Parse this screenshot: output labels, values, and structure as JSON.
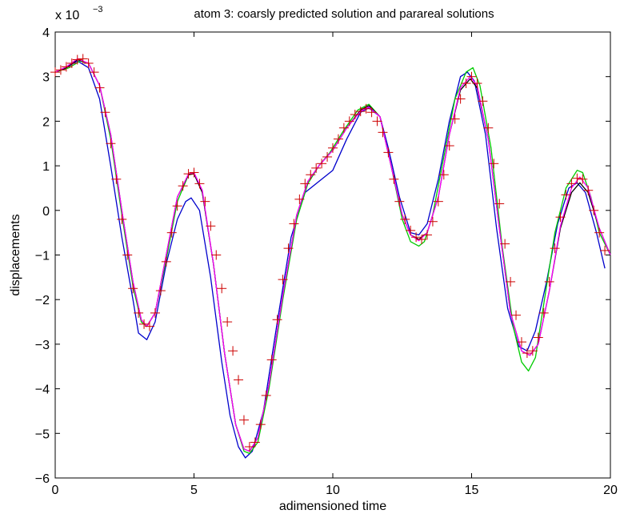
{
  "chart_data": {
    "type": "line",
    "title": "atom 3: coarsly predicted solution and parareal solutions",
    "xlabel": "adimensioned time",
    "ylabel": "displacements",
    "y_scale_label": "x 10",
    "y_scale_exponent": "−3",
    "xlim": [
      0,
      20
    ],
    "ylim": [
      -6,
      4
    ],
    "xticks": [
      0,
      5,
      10,
      15,
      20
    ],
    "xtick_labels": [
      "0",
      "5",
      "10",
      "15",
      "20"
    ],
    "yticks": [
      -6,
      -5,
      -4,
      -3,
      -2,
      -1,
      0,
      1,
      2,
      3,
      4
    ],
    "ytick_labels": [
      "−6",
      "−5",
      "−4",
      "−3",
      "−2",
      "−1",
      "0",
      "1",
      "2",
      "3",
      "4"
    ],
    "grid": false,
    "legend": "none",
    "series": [
      {
        "color": "#0000cc",
        "style": "solid",
        "x": [
          0,
          0.4,
          0.8,
          1.2,
          1.6,
          2.0,
          2.4,
          2.8,
          3.0,
          3.3,
          3.6,
          4.0,
          4.4,
          4.7,
          4.9,
          5.2,
          5.6,
          6.0,
          6.3,
          6.6,
          6.85,
          7.1,
          7.5,
          8.0,
          8.5,
          9.0,
          9.5,
          10.0,
          10.5,
          11.0,
          11.3,
          11.7,
          12.0,
          12.4,
          12.8,
          13.1,
          13.4,
          13.8,
          14.2,
          14.6,
          14.85,
          15.1,
          15.5,
          15.9,
          16.3,
          16.7,
          17.0,
          17.3,
          17.7,
          18.1,
          18.5,
          18.8,
          19.1,
          19.5,
          19.8
        ],
        "y": [
          3.1,
          3.2,
          3.35,
          3.2,
          2.5,
          1.0,
          -0.6,
          -2.0,
          -2.75,
          -2.9,
          -2.5,
          -1.2,
          -0.2,
          0.2,
          0.28,
          0.0,
          -1.5,
          -3.4,
          -4.6,
          -5.3,
          -5.55,
          -5.4,
          -4.5,
          -2.5,
          -0.6,
          0.4,
          0.65,
          0.9,
          1.6,
          2.2,
          2.3,
          2.1,
          1.4,
          0.3,
          -0.5,
          -0.55,
          -0.3,
          0.7,
          2.0,
          3.0,
          3.1,
          2.9,
          1.7,
          -0.4,
          -2.2,
          -3.05,
          -3.15,
          -2.7,
          -1.6,
          -0.3,
          0.5,
          0.62,
          0.4,
          -0.5,
          -1.3
        ]
      },
      {
        "color": "#00cc00",
        "style": "solid",
        "x": [
          0,
          0.5,
          0.9,
          1.2,
          1.6,
          2.0,
          2.4,
          2.8,
          3.1,
          3.3,
          3.6,
          4.0,
          4.4,
          4.8,
          5.0,
          5.3,
          5.7,
          6.1,
          6.5,
          6.8,
          7.0,
          7.3,
          7.7,
          8.2,
          8.7,
          9.1,
          9.5,
          9.9,
          10.4,
          10.9,
          11.3,
          11.7,
          12.1,
          12.5,
          12.8,
          13.1,
          13.3,
          13.6,
          14.0,
          14.4,
          14.8,
          15.05,
          15.3,
          15.7,
          16.1,
          16.5,
          16.8,
          17.05,
          17.3,
          17.6,
          18.0,
          18.4,
          18.8,
          19.0,
          19.3,
          19.6,
          20.0
        ],
        "y": [
          3.1,
          3.2,
          3.35,
          3.3,
          2.8,
          1.6,
          -0.1,
          -1.7,
          -2.5,
          -2.6,
          -2.3,
          -1.1,
          0.2,
          0.8,
          0.85,
          0.4,
          -1.2,
          -3.2,
          -4.8,
          -5.4,
          -5.45,
          -5.2,
          -4.0,
          -2.0,
          -0.2,
          0.6,
          1.0,
          1.3,
          1.8,
          2.25,
          2.38,
          2.1,
          1.0,
          -0.2,
          -0.7,
          -0.8,
          -0.7,
          -0.1,
          1.2,
          2.5,
          3.1,
          3.2,
          2.8,
          1.4,
          -0.8,
          -2.6,
          -3.4,
          -3.6,
          -3.3,
          -2.1,
          -0.5,
          0.5,
          0.9,
          0.85,
          0.3,
          -0.5,
          -1.0
        ]
      },
      {
        "color": "#000000",
        "style": "solid",
        "x": [
          0,
          0.4,
          0.8,
          1.2,
          1.6,
          2.0,
          2.4,
          2.8,
          3.1,
          3.3,
          3.6,
          4.0,
          4.4,
          4.8,
          5.0,
          5.3,
          5.7,
          6.1,
          6.5,
          6.8,
          7.0,
          7.3,
          7.7,
          8.2,
          8.7,
          9.1,
          9.5,
          10.0,
          10.5,
          11.0,
          11.3,
          11.7,
          12.1,
          12.5,
          12.8,
          13.1,
          13.4,
          13.8,
          14.2,
          14.6,
          14.95,
          15.2,
          15.6,
          16.0,
          16.4,
          16.8,
          17.1,
          17.4,
          17.8,
          18.2,
          18.6,
          18.9,
          19.2,
          19.6,
          20.0
        ],
        "y": [
          3.1,
          3.2,
          3.38,
          3.3,
          2.8,
          1.7,
          0.0,
          -1.6,
          -2.45,
          -2.6,
          -2.3,
          -1.0,
          0.3,
          0.8,
          0.82,
          0.4,
          -1.2,
          -3.2,
          -4.8,
          -5.35,
          -5.4,
          -5.1,
          -3.9,
          -1.9,
          -0.1,
          0.65,
          1.0,
          1.35,
          1.85,
          2.25,
          2.35,
          2.1,
          1.0,
          -0.1,
          -0.55,
          -0.65,
          -0.5,
          0.3,
          1.7,
          2.7,
          2.95,
          2.75,
          1.6,
          -0.4,
          -2.3,
          -3.15,
          -3.25,
          -3.0,
          -1.8,
          -0.4,
          0.4,
          0.62,
          0.4,
          -0.4,
          -1.0
        ]
      },
      {
        "color": "#ff00ff",
        "style": "solid",
        "x": [
          0,
          0.4,
          0.8,
          1.2,
          1.6,
          2.0,
          2.4,
          2.8,
          3.1,
          3.3,
          3.6,
          4.0,
          4.4,
          4.8,
          5.0,
          5.3,
          5.7,
          6.1,
          6.5,
          6.8,
          7.0,
          7.3,
          7.7,
          8.2,
          8.7,
          9.1,
          9.5,
          10.0,
          10.5,
          11.0,
          11.3,
          11.7,
          12.1,
          12.5,
          12.8,
          13.1,
          13.4,
          13.8,
          14.2,
          14.6,
          14.95,
          15.2,
          15.6,
          16.0,
          16.4,
          16.8,
          17.1,
          17.4,
          17.8,
          18.2,
          18.6,
          18.9,
          19.2,
          19.6,
          20.0
        ],
        "y": [
          3.1,
          3.22,
          3.4,
          3.3,
          2.8,
          1.7,
          0.0,
          -1.6,
          -2.45,
          -2.6,
          -2.3,
          -1.0,
          0.3,
          0.82,
          0.85,
          0.45,
          -1.2,
          -3.2,
          -4.8,
          -5.35,
          -5.4,
          -5.1,
          -3.9,
          -1.9,
          -0.1,
          0.65,
          1.0,
          1.35,
          1.85,
          2.22,
          2.32,
          2.1,
          1.0,
          -0.1,
          -0.55,
          -0.68,
          -0.5,
          0.3,
          1.7,
          2.75,
          3.0,
          2.8,
          1.6,
          -0.4,
          -2.3,
          -3.15,
          -3.25,
          -3.0,
          -1.8,
          -0.35,
          0.5,
          0.75,
          0.5,
          -0.4,
          -1.0
        ]
      },
      {
        "color": "#cc0000",
        "style": "markers",
        "marker": "+",
        "x": [
          0,
          0.2,
          0.4,
          0.6,
          0.8,
          1.0,
          1.2,
          1.4,
          1.6,
          1.8,
          2.0,
          2.2,
          2.4,
          2.6,
          2.8,
          3.0,
          3.2,
          3.4,
          3.6,
          3.8,
          4.0,
          4.2,
          4.4,
          4.6,
          4.8,
          5.0,
          5.2,
          5.4,
          5.6,
          5.8,
          6.0,
          6.2,
          6.4,
          6.6,
          6.8,
          7.0,
          7.2,
          7.4,
          7.6,
          7.8,
          8.0,
          8.2,
          8.4,
          8.6,
          8.8,
          9.0,
          9.2,
          9.4,
          9.6,
          9.8,
          10.0,
          10.2,
          10.4,
          10.6,
          10.8,
          11.0,
          11.2,
          11.4,
          11.6,
          11.8,
          12.0,
          12.2,
          12.4,
          12.6,
          12.8,
          13.0,
          13.2,
          13.4,
          13.6,
          13.8,
          14.0,
          14.2,
          14.4,
          14.6,
          14.8,
          15.0,
          15.2,
          15.4,
          15.6,
          15.8,
          16.0,
          16.2,
          16.4,
          16.6,
          16.8,
          17.0,
          17.2,
          17.4,
          17.6,
          17.8,
          18.0,
          18.2,
          18.4,
          18.6,
          18.8,
          19.0,
          19.2,
          19.4,
          19.6,
          19.8
        ],
        "y": [
          3.1,
          3.15,
          3.22,
          3.3,
          3.38,
          3.4,
          3.3,
          3.1,
          2.75,
          2.2,
          1.5,
          0.7,
          -0.2,
          -1.0,
          -1.75,
          -2.3,
          -2.55,
          -2.6,
          -2.3,
          -1.8,
          -1.15,
          -0.5,
          0.1,
          0.55,
          0.82,
          0.85,
          0.6,
          0.2,
          -0.35,
          -1.0,
          -1.75,
          -2.5,
          -3.15,
          -3.8,
          -4.7,
          -5.3,
          -5.2,
          -4.8,
          -4.15,
          -3.35,
          -2.45,
          -1.55,
          -0.85,
          -0.3,
          0.25,
          0.6,
          0.8,
          0.95,
          1.05,
          1.2,
          1.4,
          1.6,
          1.85,
          2.0,
          2.15,
          2.22,
          2.28,
          2.2,
          2.0,
          1.75,
          1.3,
          0.7,
          0.2,
          -0.2,
          -0.45,
          -0.6,
          -0.65,
          -0.55,
          -0.25,
          0.2,
          0.8,
          1.45,
          2.05,
          2.5,
          2.85,
          3.0,
          2.85,
          2.45,
          1.85,
          1.05,
          0.15,
          -0.75,
          -1.6,
          -2.35,
          -2.95,
          -3.2,
          -3.15,
          -2.85,
          -2.3,
          -1.6,
          -0.85,
          -0.15,
          0.35,
          0.6,
          0.72,
          0.7,
          0.45,
          0.0,
          -0.5,
          -0.9
        ]
      }
    ]
  }
}
